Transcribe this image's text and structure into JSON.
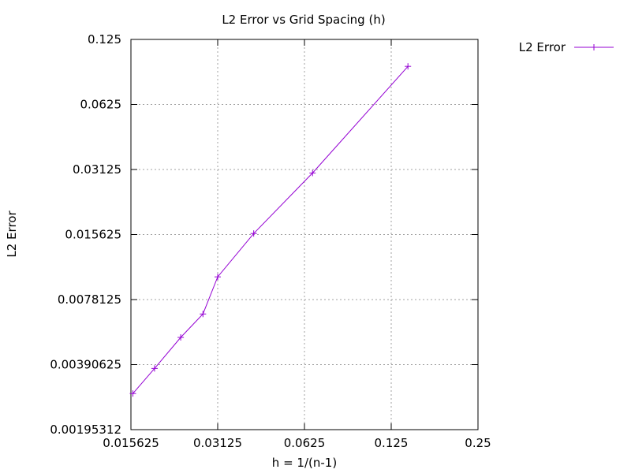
{
  "chart_data": {
    "type": "line",
    "title": "L2 Error vs Grid Spacing (h)",
    "xlabel": "h = 1/(n-1)",
    "ylabel": "L2 Error",
    "x_scale": "log2",
    "y_scale": "log2",
    "xlim": [
      0.015625,
      0.25
    ],
    "ylim": [
      0.001953125,
      0.125
    ],
    "x_ticks": [
      0.015625,
      0.03125,
      0.0625,
      0.125,
      0.25
    ],
    "x_tick_labels": [
      "0.015625",
      "0.03125",
      "0.0625",
      "0.125",
      "0.25"
    ],
    "y_ticks": [
      0.001953125,
      0.00390625,
      0.0078125,
      0.015625,
      0.03125,
      0.0625,
      0.125
    ],
    "y_tick_labels": [
      "0.00195312",
      "0.00390625",
      "0.0078125",
      "0.015625",
      "0.03125",
      "0.0625",
      "0.125"
    ],
    "grid": true,
    "legend_position": "outside-top-right",
    "series": [
      {
        "name": "L2 Error",
        "color": "#9400d3",
        "marker": "plus",
        "x": [
          0.015873,
          0.018868,
          0.023256,
          0.027778,
          0.03125,
          0.041667,
          0.066667,
          0.142857
        ],
        "y": [
          0.00287,
          0.00375,
          0.00522,
          0.0067,
          0.00995,
          0.0158,
          0.0301,
          0.0938
        ]
      }
    ]
  }
}
